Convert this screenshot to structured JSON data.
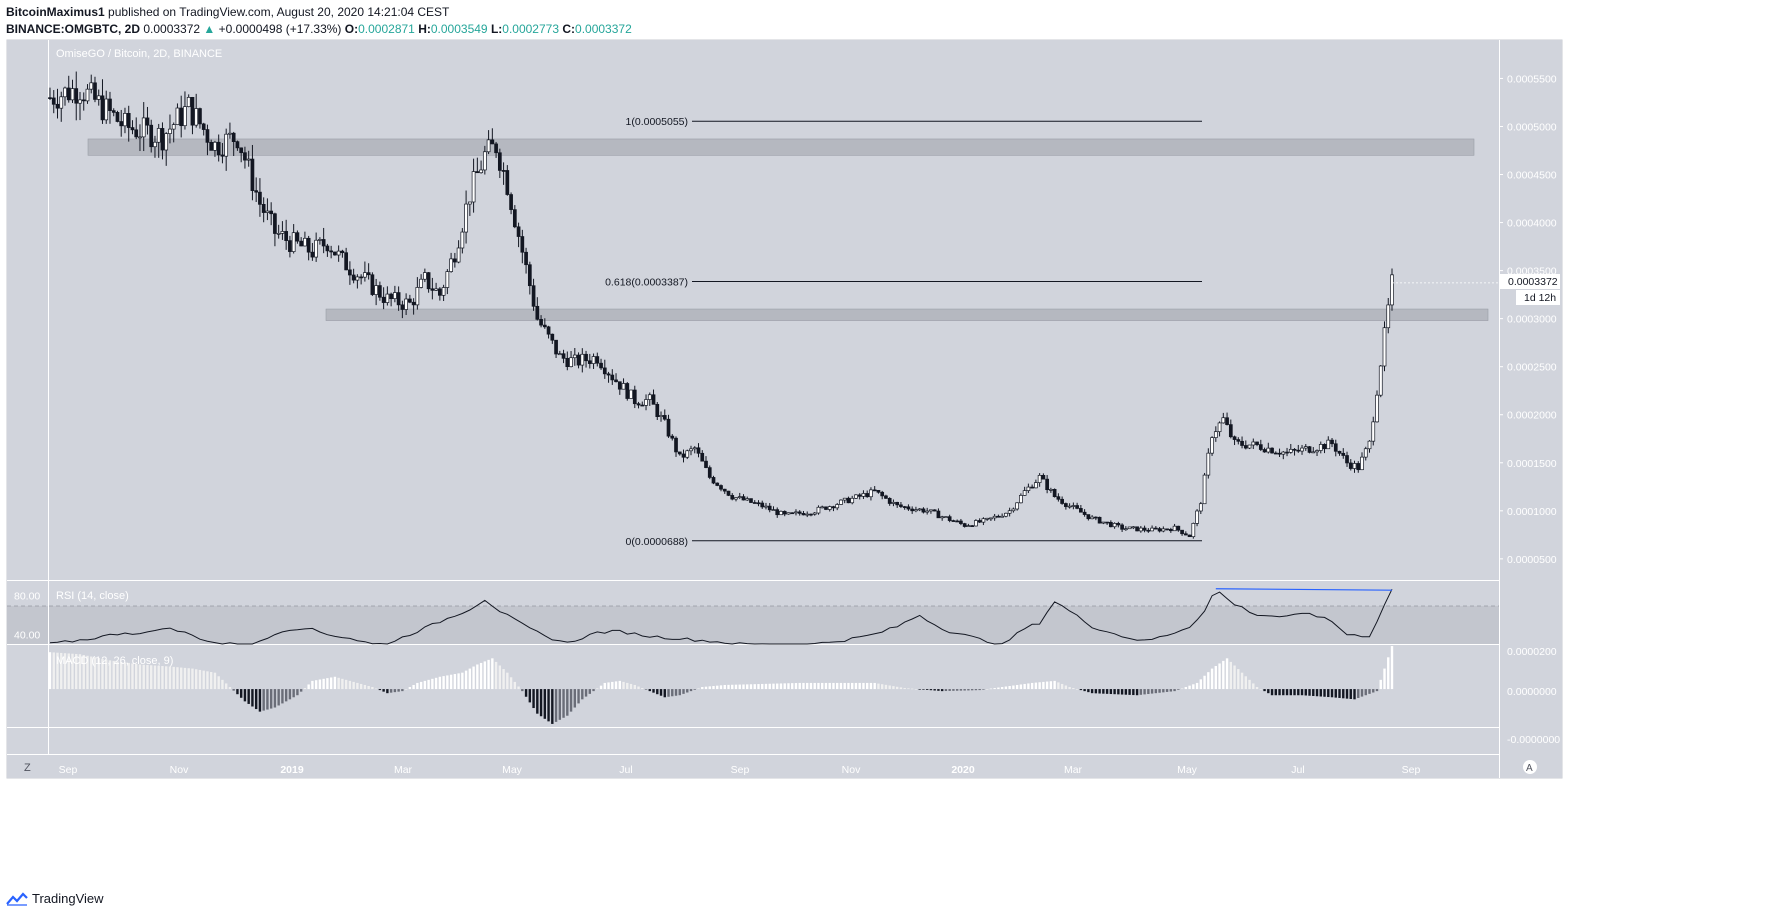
{
  "header": {
    "author": "BitcoinMaximus1",
    "published": "published on TradingView.com, August 20, 2020 14:21:04 CEST"
  },
  "ohlc": {
    "symbol": "BINANCE:OMGBTC, 2D",
    "last": "0.0003372",
    "arrow": "▲",
    "change": "+0.0000498 (+17.33%)",
    "o_label": "O:",
    "o": "0.0002871",
    "h_label": "H:",
    "h": "0.0003549",
    "l_label": "L:",
    "l": "0.0002773",
    "c_label": "C:",
    "c": "0.0003372"
  },
  "pane_title": "OmiseGO / Bitcoin, 2D, BINANCE",
  "price_badge": "0.0003372",
  "countdown_badge": "1d 12h",
  "footer": {
    "brand": "TradingView"
  },
  "buttons": {
    "zoom": "Z",
    "auto": "A"
  },
  "colors": {
    "pane_bg": "#d1d4dc",
    "zone": "#b2b5be",
    "candle": "#131722",
    "rsi_trend": "#2962ff"
  },
  "chart_data": [
    {
      "type": "candlestick",
      "title": "OmiseGO / Bitcoin, 2D, BINANCE",
      "x_ticks": [
        "Sep",
        "Nov",
        "2019",
        "Mar",
        "May",
        "Jul",
        "Sep",
        "Nov",
        "2020",
        "Mar",
        "May",
        "Jul",
        "Sep"
      ],
      "y_ticks": [
        "0.0005500",
        "0.0005000",
        "0.0004500",
        "0.0004000",
        "0.0003500",
        "0.0003000",
        "0.0002500",
        "0.0002000",
        "0.0001500",
        "0.0001000",
        "0.0000500"
      ],
      "ylim": [
        2.8e-05,
        0.00059
      ],
      "close_path": [
        [
          0,
          0.00053
        ],
        [
          8,
          0.00054
        ],
        [
          20,
          0.0005
        ],
        [
          30,
          0.00049
        ],
        [
          37,
          0.00052
        ],
        [
          44,
          0.00048
        ],
        [
          50,
          0.00049
        ],
        [
          56,
          0.00042
        ],
        [
          60,
          0.00039
        ],
        [
          64,
          0.00038
        ],
        [
          70,
          0.00037
        ],
        [
          74,
          0.00038
        ],
        [
          78,
          0.00036
        ],
        [
          84,
          0.00034
        ],
        [
          90,
          0.00032
        ],
        [
          96,
          0.000315
        ],
        [
          100,
          0.00034
        ],
        [
          104,
          0.000325
        ],
        [
          108,
          0.00037
        ],
        [
          112,
          0.00043
        ],
        [
          116,
          0.00047
        ],
        [
          119,
          0.00048
        ],
        [
          122,
          0.00044
        ],
        [
          126,
          0.00037
        ],
        [
          130,
          0.0003
        ],
        [
          136,
          0.00026
        ],
        [
          140,
          0.000255
        ],
        [
          146,
          0.00026
        ],
        [
          150,
          0.00024
        ],
        [
          156,
          0.000215
        ],
        [
          160,
          0.000215
        ],
        [
          164,
          0.00019
        ],
        [
          168,
          0.000155
        ],
        [
          172,
          0.000165
        ],
        [
          176,
          0.000135
        ],
        [
          182,
          0.000115
        ],
        [
          190,
          0.000105
        ],
        [
          196,
          9.5e-05
        ],
        [
          204,
          0.0001
        ],
        [
          212,
          0.00011
        ],
        [
          220,
          0.00012
        ],
        [
          226,
          0.000105
        ],
        [
          234,
          0.0001
        ],
        [
          244,
          8.5e-05
        ],
        [
          250,
          9e-05
        ],
        [
          256,
          0.0001
        ],
        [
          260,
          0.00012
        ],
        [
          264,
          0.000135
        ],
        [
          268,
          0.000115
        ],
        [
          272,
          0.000105
        ],
        [
          278,
          9.2e-05
        ],
        [
          286,
          8.2e-05
        ],
        [
          294,
          8e-05
        ],
        [
          300,
          8.2e-05
        ],
        [
          304,
          7.4e-05
        ],
        [
          307,
          0.00011
        ],
        [
          310,
          0.00018
        ],
        [
          313,
          0.000195
        ],
        [
          316,
          0.00017
        ],
        [
          322,
          0.000168
        ],
        [
          330,
          0.00016
        ],
        [
          336,
          0.000165
        ],
        [
          342,
          0.00017
        ],
        [
          346,
          0.00015
        ],
        [
          349,
          0.000145
        ],
        [
          352,
          0.00017
        ],
        [
          355,
          0.000255
        ],
        [
          358,
          0.000337
        ]
      ],
      "levels": [
        {
          "label": "1(0.0005055)",
          "value": 0.0005055
        },
        {
          "label": "0.618(0.0003387)",
          "value": 0.0003387
        },
        {
          "label": "0(0.0000688)",
          "value": 6.88e-05
        }
      ],
      "zones": [
        {
          "from": 0.00047,
          "to": 0.000487
        },
        {
          "from": 0.000298,
          "to": 0.00031
        }
      ],
      "last_price": 0.0003372
    },
    {
      "type": "line",
      "title": "RSI (14, close)",
      "y_ticks": [
        "80.00",
        "40.00"
      ],
      "ylim": [
        30,
        95
      ],
      "levels": [
        70,
        30
      ],
      "values": [
        [
          0,
          30
        ],
        [
          10,
          35
        ],
        [
          20,
          42
        ],
        [
          25,
          40
        ],
        [
          30,
          47
        ],
        [
          35,
          43
        ],
        [
          40,
          36
        ],
        [
          45,
          30
        ],
        [
          55,
          30
        ],
        [
          62,
          44
        ],
        [
          68,
          47
        ],
        [
          74,
          40
        ],
        [
          80,
          36
        ],
        [
          86,
          30
        ],
        [
          90,
          30
        ],
        [
          96,
          40
        ],
        [
          104,
          53
        ],
        [
          112,
          66
        ],
        [
          116,
          76
        ],
        [
          120,
          64
        ],
        [
          126,
          50
        ],
        [
          132,
          38
        ],
        [
          138,
          31
        ],
        [
          146,
          42
        ],
        [
          152,
          43
        ],
        [
          160,
          38
        ],
        [
          170,
          35
        ],
        [
          176,
          33
        ],
        [
          184,
          30
        ],
        [
          194,
          29
        ],
        [
          204,
          30
        ],
        [
          212,
          34
        ],
        [
          220,
          40
        ],
        [
          226,
          48
        ],
        [
          232,
          60
        ],
        [
          236,
          50
        ],
        [
          240,
          43
        ],
        [
          246,
          37
        ],
        [
          250,
          33
        ],
        [
          254,
          29
        ],
        [
          260,
          46
        ],
        [
          264,
          52
        ],
        [
          268,
          74
        ],
        [
          272,
          64
        ],
        [
          278,
          48
        ],
        [
          286,
          38
        ],
        [
          292,
          33
        ],
        [
          298,
          39
        ],
        [
          304,
          48
        ],
        [
          308,
          64
        ],
        [
          311,
          87
        ],
        [
          315,
          73
        ],
        [
          322,
          60
        ],
        [
          330,
          58
        ],
        [
          336,
          62
        ],
        [
          342,
          53
        ],
        [
          346,
          40
        ],
        [
          352,
          38
        ],
        [
          356,
          70
        ],
        [
          358,
          87
        ]
      ]
    },
    {
      "type": "histogram",
      "title": "MACD (12, 26, close, 9)",
      "y_ticks": [
        "0.0000200",
        "0.0000000",
        "-0.0000000"
      ],
      "ylim": [
        -1.85e-05,
        2.15e-05
      ],
      "values": [
        [
          0,
          1.8e-05
        ],
        [
          8,
          1.7e-05
        ],
        [
          16,
          1.4e-05
        ],
        [
          24,
          1.2e-05
        ],
        [
          32,
          1.1e-05
        ],
        [
          38,
          1e-05
        ],
        [
          44,
          8e-06
        ],
        [
          48,
          1e-06
        ],
        [
          52,
          -6e-06
        ],
        [
          56,
          -1.1e-05
        ],
        [
          60,
          -9e-06
        ],
        [
          66,
          -3e-06
        ],
        [
          70,
          4e-06
        ],
        [
          76,
          6e-06
        ],
        [
          80,
          4e-06
        ],
        [
          86,
          1e-06
        ],
        [
          90,
          -2e-06
        ],
        [
          94,
          -1e-06
        ],
        [
          98,
          3e-06
        ],
        [
          104,
          6e-06
        ],
        [
          110,
          8e-06
        ],
        [
          114,
          1.2e-05
        ],
        [
          118,
          1.5e-05
        ],
        [
          122,
          8e-06
        ],
        [
          126,
          -1e-06
        ],
        [
          130,
          -1.2e-05
        ],
        [
          134,
          -1.7e-05
        ],
        [
          138,
          -1.3e-05
        ],
        [
          142,
          -5e-06
        ],
        [
          148,
          3e-06
        ],
        [
          152,
          4e-06
        ],
        [
          156,
          2e-06
        ],
        [
          160,
          -1e-06
        ],
        [
          164,
          -4e-06
        ],
        [
          168,
          -3e-06
        ],
        [
          174,
          1e-06
        ],
        [
          180,
          2e-06
        ],
        [
          200,
          3e-06
        ],
        [
          220,
          3e-06
        ],
        [
          228,
          5e-07
        ],
        [
          238,
          -1e-06
        ],
        [
          248,
          -5e-07
        ],
        [
          254,
          1e-06
        ],
        [
          262,
          3e-06
        ],
        [
          268,
          4e-06
        ],
        [
          272,
          1e-06
        ],
        [
          278,
          -2e-06
        ],
        [
          290,
          -3e-06
        ],
        [
          300,
          -1e-06
        ],
        [
          306,
          3e-06
        ],
        [
          310,
          1e-05
        ],
        [
          314,
          1.5e-05
        ],
        [
          318,
          8e-06
        ],
        [
          322,
          1e-06
        ],
        [
          326,
          -3e-06
        ],
        [
          334,
          -3e-06
        ],
        [
          342,
          -4e-06
        ],
        [
          348,
          -5e-06
        ],
        [
          354,
          -1e-06
        ],
        [
          358,
          2.1e-05
        ]
      ]
    }
  ]
}
